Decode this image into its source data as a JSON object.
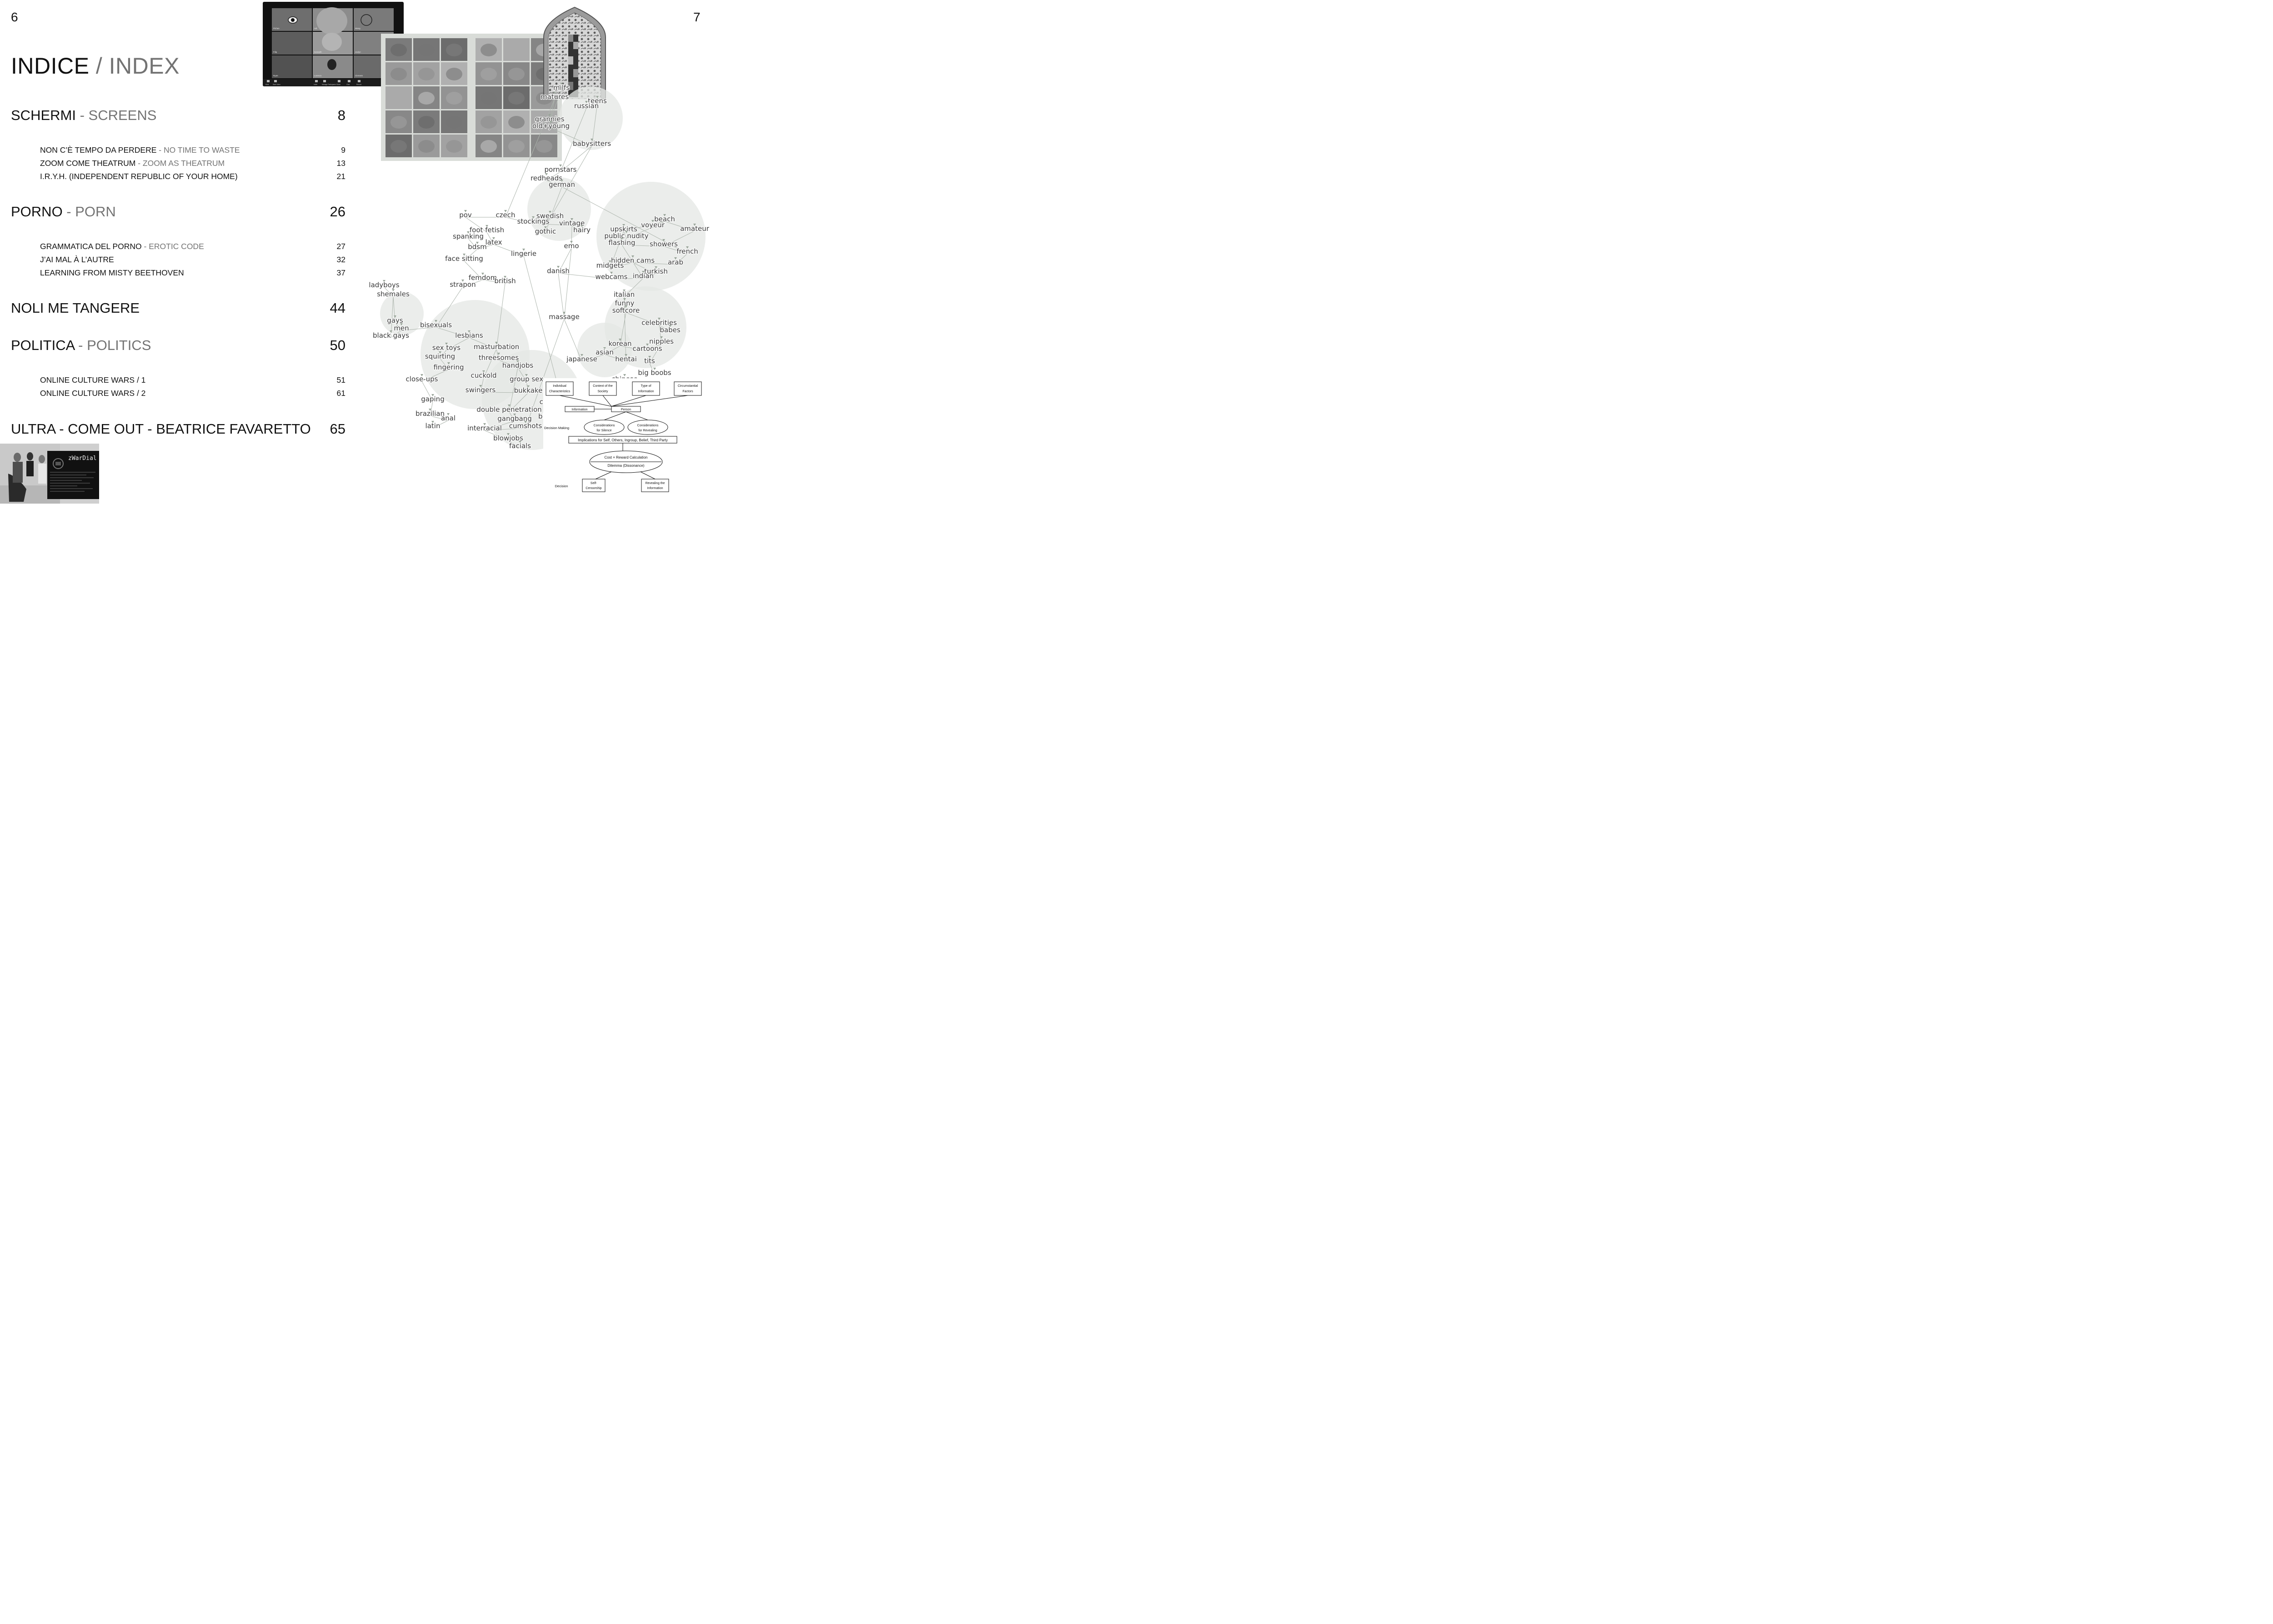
{
  "pages": {
    "left": "6",
    "right": "7"
  },
  "title": {
    "primary": "INDICE",
    "separator": " / ",
    "secondary": "INDEX"
  },
  "sections": [
    {
      "primary": "SCHERMI",
      "separator": " - ",
      "secondary": "SCREENS",
      "page": "8",
      "subsections": [
        {
          "primary": "NON C’È TEMPO DA PERDERE",
          "separator": " - ",
          "secondary": "NO TIME TO WASTE",
          "page": "9"
        },
        {
          "primary": "ZOOM COME THEATRUM",
          "separator": " - ",
          "secondary": "ZOOM AS THEATRUM",
          "page": "13"
        },
        {
          "primary": "I.R.Y.H. (INDEPENDENT REPUBLIC OF YOUR HOME)",
          "separator": "",
          "secondary": "",
          "page": "21"
        }
      ]
    },
    {
      "primary": "PORNO",
      "separator": " - ",
      "secondary": "PORN",
      "page": "26",
      "subsections": [
        {
          "primary": "GRAMMATICA DEL PORNO",
          "separator": " - ",
          "secondary": "EROTIC CODE",
          "page": "27"
        },
        {
          "primary": "J’AI MAL À L’AUTRE",
          "separator": "",
          "secondary": "",
          "page": "32"
        },
        {
          "primary": "LEARNING FROM MISTY BEETHOVEN",
          "separator": "",
          "secondary": "",
          "page": "37"
        }
      ]
    },
    {
      "primary": "NOLI ME TANGERE",
      "separator": "",
      "secondary": "",
      "page": "44",
      "subsections": []
    },
    {
      "primary": "POLITICA",
      "separator": " - ",
      "secondary": "POLITICS",
      "page": "50",
      "subsections": [
        {
          "primary": "ONLINE CULTURE WARS / 1",
          "separator": "",
          "secondary": "",
          "page": "51"
        },
        {
          "primary": "ONLINE CULTURE WARS / 2",
          "separator": "",
          "secondary": "",
          "page": "61"
        }
      ]
    },
    {
      "primary": "ULTRA - COME OUT - BEATRICE FAVARETTO",
      "separator": "",
      "secondary": "",
      "page": "65",
      "subsections": []
    }
  ],
  "zoom_participants": [
    "Pichan",
    "Adi",
    "Wang",
    "Filip",
    "Kenneth",
    "Jaclyn",
    "Ryan",
    "Lorenzo",
    "Clement"
  ],
  "zoom_toolbar": [
    "Mute",
    "Start Video",
    "Invite",
    "Manage Participants",
    "Share",
    "Chat",
    "Record"
  ],
  "cover_text": "zWarDial",
  "network": {
    "tags": [
      "milfs",
      "matures",
      "teens",
      "russian",
      "grannies",
      "old+young",
      "babysitters",
      "pornstars",
      "redheads",
      "german",
      "pov",
      "czech",
      "swedish",
      "stockings",
      "vintage",
      "gothic",
      "hairy",
      "beach",
      "voyeur",
      "amateur",
      "upskirts",
      "public nudity",
      "flashing",
      "showers",
      "french",
      "foot fetish",
      "spanking",
      "latex",
      "bdsm",
      "emo",
      "lingerie",
      "face sitting",
      "danish",
      "midgets",
      "hidden cams",
      "arab",
      "turkish",
      "webcams",
      "indian",
      "femdom",
      "british",
      "strapon",
      "ladyboys",
      "shemales",
      "italian",
      "funny",
      "softcore",
      "massage",
      "gays",
      "men",
      "black gays",
      "bisexuals",
      "lesbians",
      "celebrities",
      "babes",
      "korean",
      "cartoons",
      "nipples",
      "sex toys",
      "masturbation",
      "squirting",
      "asian",
      "threesomes",
      "japanese",
      "hentai",
      "tits",
      "handjobs",
      "fingering",
      "big boobs",
      "cuckold",
      "group sex",
      "close-ups",
      "chinese",
      "bbw",
      "swingers",
      "bukkake",
      "thai",
      "cream pie",
      "gaping",
      "double penetration",
      "brazilian",
      "anal",
      "black and ebony",
      "gangbang",
      "latin",
      "interracial",
      "cumshots",
      "blowjobs",
      "facials"
    ]
  },
  "flowchart": {
    "factors": [
      "Individual Characteristics",
      "Context of the Society",
      "Type of Information",
      "Circumstantial Factors"
    ],
    "information": "Information",
    "person": "Person",
    "decision_making": "Decision Making",
    "silence": "Considerations for Silence",
    "revealing": "Considerations for Revealing",
    "implications": "Implications for Self, Others, Ingroup, Belief, Third Party",
    "calc": "Cost × Reward Calculation",
    "dilemma": "Dilemma (Dissonance)",
    "decision": "Decision",
    "self_censorship": "Self-Censorship",
    "revealing_info": "Revealing the Information"
  }
}
